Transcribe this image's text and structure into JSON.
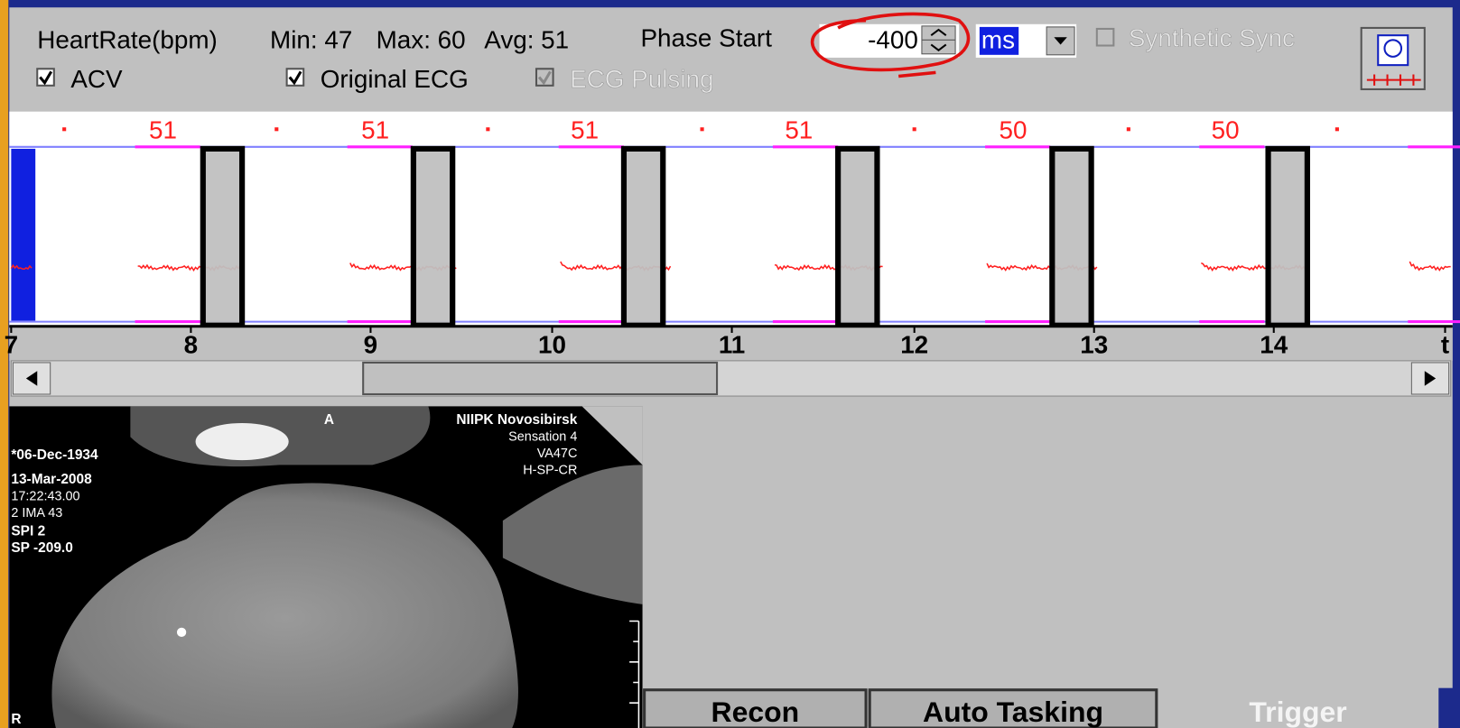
{
  "header": {
    "heart_rate_label": "HeartRate(bpm)",
    "min": "Min: 47",
    "max": "Max: 60",
    "avg": "Avg: 51",
    "phase_start_label": "Phase Start",
    "phase_start_value": "-400",
    "unit": "ms",
    "synthetic_sync": "Synthetic Sync"
  },
  "checkboxes": [
    "ACV",
    "Original ECG",
    "ECG Pulsing"
  ],
  "ecg": {
    "heart_rates": [
      "51",
      "51",
      "51",
      "51",
      "50",
      "50"
    ],
    "time_labels": [
      "7",
      "8",
      "9",
      "10",
      "11",
      "12",
      "13",
      "14",
      "t"
    ]
  },
  "image_overlay": {
    "top_marker": "A",
    "institution": "NIIPK Novosibirsk",
    "scanner": "Sensation 4",
    "version": "VA47C",
    "orientation": "H-SP-CR",
    "birth_date": "*06-Dec-1934",
    "study_date": "13-Mar-2008",
    "time": "17:22:43.00",
    "image": "2 IMA 43",
    "spi": "SPI 2",
    "position": "SP -209.0",
    "side_marker": "R"
  },
  "tabs": [
    "Recon",
    "Auto Tasking",
    "Trigger"
  ]
}
